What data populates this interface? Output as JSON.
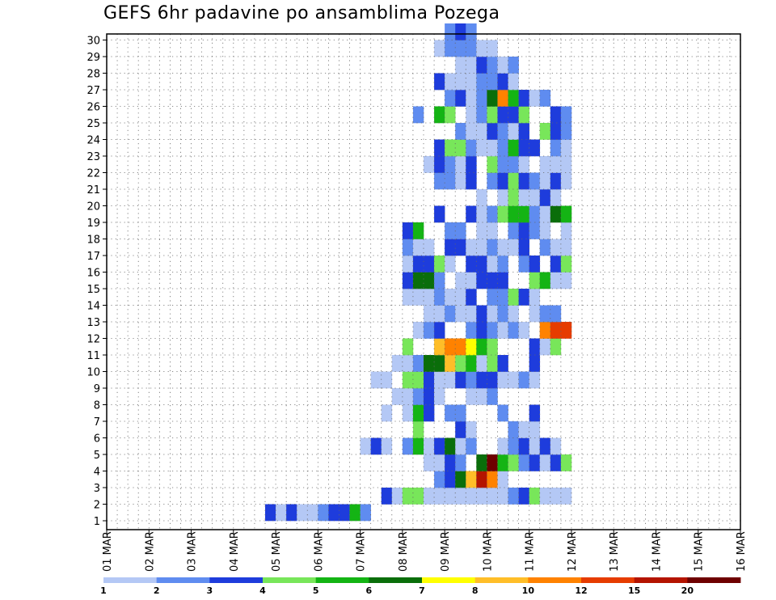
{
  "chart_data": {
    "type": "heatmap",
    "title": "GEFS 6hr padavine po ansamblima Pozega",
    "x_tick_labels": [
      "01 MAR",
      "02 MAR",
      "03 MAR",
      "04 MAR",
      "05 MAR",
      "06 MAR",
      "07 MAR",
      "08 MAR",
      "09 MAR",
      "10 MAR",
      "11 MAR",
      "12 MAR",
      "13 MAR",
      "14 MAR",
      "15 MAR",
      "16 MAR"
    ],
    "y_tick_labels": [
      "1",
      "2",
      "3",
      "4",
      "5",
      "6",
      "7",
      "8",
      "9",
      "10",
      "11",
      "12",
      "13",
      "14",
      "15",
      "16",
      "17",
      "18",
      "19",
      "20",
      "21",
      "22",
      "23",
      "24",
      "25",
      "26",
      "27",
      "28",
      "29",
      "30"
    ],
    "grid": true,
    "legend": {
      "placement": "bottom",
      "labels": [
        "1",
        "2",
        "3",
        "4",
        "5",
        "6",
        "7",
        "8",
        "10",
        "12",
        "15",
        "20"
      ],
      "colors": [
        "#b4c8f5",
        "#5f8cf0",
        "#1e3cdc",
        "#78e65a",
        "#14b414",
        "#0a6e0a",
        "#ffff00",
        "#ffbe28",
        "#ff8200",
        "#e63c00",
        "#b41400",
        "#6e0000"
      ]
    },
    "cells": [
      [
        15,
        0,
        3
      ],
      [
        16,
        0,
        1
      ],
      [
        17,
        0,
        3
      ],
      [
        18,
        0,
        1
      ],
      [
        19,
        0,
        1
      ],
      [
        20,
        0,
        2
      ],
      [
        21,
        0,
        3
      ],
      [
        22,
        0,
        3
      ],
      [
        23,
        0,
        5
      ],
      [
        24,
        0,
        2
      ],
      [
        26,
        1,
        3
      ],
      [
        27,
        1,
        1
      ],
      [
        28,
        1,
        4
      ],
      [
        29,
        1,
        4
      ],
      [
        30,
        1,
        1
      ],
      [
        31,
        1,
        1
      ],
      [
        32,
        1,
        1
      ],
      [
        33,
        1,
        1
      ],
      [
        34,
        1,
        1
      ],
      [
        35,
        1,
        1
      ],
      [
        36,
        1,
        1
      ],
      [
        37,
        1,
        1
      ],
      [
        38,
        1,
        2
      ],
      [
        39,
        1,
        3
      ],
      [
        40,
        1,
        4
      ],
      [
        41,
        1,
        1
      ],
      [
        42,
        1,
        1
      ],
      [
        43,
        1,
        1
      ],
      [
        31,
        2,
        2
      ],
      [
        32,
        2,
        3
      ],
      [
        33,
        2,
        6
      ],
      [
        34,
        2,
        8
      ],
      [
        35,
        2,
        11
      ],
      [
        36,
        2,
        9
      ],
      [
        37,
        2,
        1
      ],
      [
        30,
        3,
        1
      ],
      [
        31,
        3,
        1
      ],
      [
        32,
        3,
        3
      ],
      [
        33,
        3,
        2
      ],
      [
        35,
        3,
        6
      ],
      [
        36,
        3,
        12
      ],
      [
        37,
        3,
        5
      ],
      [
        38,
        3,
        4
      ],
      [
        39,
        3,
        2
      ],
      [
        40,
        3,
        3
      ],
      [
        41,
        3,
        1
      ],
      [
        42,
        3,
        3
      ],
      [
        43,
        3,
        4
      ],
      [
        24,
        4,
        1
      ],
      [
        25,
        4,
        3
      ],
      [
        26,
        4,
        1
      ],
      [
        28,
        4,
        2
      ],
      [
        29,
        4,
        5
      ],
      [
        30,
        4,
        1
      ],
      [
        31,
        4,
        3
      ],
      [
        32,
        4,
        6
      ],
      [
        33,
        4,
        1
      ],
      [
        34,
        4,
        2
      ],
      [
        37,
        4,
        1
      ],
      [
        38,
        4,
        2
      ],
      [
        39,
        4,
        3
      ],
      [
        40,
        4,
        1
      ],
      [
        41,
        4,
        3
      ],
      [
        42,
        4,
        1
      ],
      [
        29,
        5,
        4
      ],
      [
        33,
        5,
        3
      ],
      [
        34,
        5,
        1
      ],
      [
        38,
        5,
        2
      ],
      [
        39,
        5,
        1
      ],
      [
        40,
        5,
        1
      ],
      [
        26,
        6,
        1
      ],
      [
        28,
        6,
        1
      ],
      [
        29,
        6,
        5
      ],
      [
        30,
        6,
        3
      ],
      [
        32,
        6,
        2
      ],
      [
        33,
        6,
        2
      ],
      [
        37,
        6,
        2
      ],
      [
        40,
        6,
        3
      ],
      [
        27,
        7,
        1
      ],
      [
        28,
        7,
        1
      ],
      [
        29,
        7,
        2
      ],
      [
        30,
        7,
        3
      ],
      [
        31,
        7,
        1
      ],
      [
        34,
        7,
        1
      ],
      [
        35,
        7,
        1
      ],
      [
        36,
        7,
        2
      ],
      [
        25,
        8,
        1
      ],
      [
        26,
        8,
        1
      ],
      [
        28,
        8,
        4
      ],
      [
        29,
        8,
        4
      ],
      [
        30,
        8,
        3
      ],
      [
        31,
        8,
        1
      ],
      [
        32,
        8,
        1
      ],
      [
        33,
        8,
        3
      ],
      [
        34,
        8,
        2
      ],
      [
        35,
        8,
        3
      ],
      [
        36,
        8,
        3
      ],
      [
        37,
        8,
        1
      ],
      [
        38,
        8,
        1
      ],
      [
        39,
        8,
        2
      ],
      [
        40,
        8,
        1
      ],
      [
        27,
        9,
        1
      ],
      [
        28,
        9,
        1
      ],
      [
        29,
        9,
        2
      ],
      [
        30,
        9,
        6
      ],
      [
        31,
        9,
        6
      ],
      [
        32,
        9,
        8
      ],
      [
        33,
        9,
        4
      ],
      [
        34,
        9,
        5
      ],
      [
        35,
        9,
        1
      ],
      [
        36,
        9,
        4
      ],
      [
        37,
        9,
        3
      ],
      [
        40,
        9,
        3
      ],
      [
        28,
        10,
        4
      ],
      [
        31,
        10,
        8
      ],
      [
        32,
        10,
        9
      ],
      [
        33,
        10,
        9
      ],
      [
        34,
        10,
        7
      ],
      [
        35,
        10,
        5
      ],
      [
        36,
        10,
        4
      ],
      [
        40,
        10,
        3
      ],
      [
        41,
        10,
        1
      ],
      [
        42,
        10,
        4
      ],
      [
        29,
        11,
        1
      ],
      [
        30,
        11,
        2
      ],
      [
        31,
        11,
        3
      ],
      [
        34,
        11,
        2
      ],
      [
        35,
        11,
        3
      ],
      [
        36,
        11,
        2
      ],
      [
        37,
        11,
        1
      ],
      [
        38,
        11,
        2
      ],
      [
        39,
        11,
        1
      ],
      [
        41,
        11,
        9
      ],
      [
        42,
        11,
        10
      ],
      [
        43,
        11,
        10
      ],
      [
        30,
        12,
        1
      ],
      [
        31,
        12,
        1
      ],
      [
        32,
        12,
        2
      ],
      [
        33,
        12,
        1
      ],
      [
        34,
        12,
        1
      ],
      [
        35,
        12,
        3
      ],
      [
        36,
        12,
        1
      ],
      [
        37,
        12,
        2
      ],
      [
        38,
        12,
        1
      ],
      [
        40,
        12,
        1
      ],
      [
        41,
        12,
        2
      ],
      [
        42,
        12,
        2
      ],
      [
        28,
        13,
        1
      ],
      [
        29,
        13,
        1
      ],
      [
        30,
        13,
        1
      ],
      [
        31,
        13,
        2
      ],
      [
        32,
        13,
        1
      ],
      [
        33,
        13,
        1
      ],
      [
        34,
        13,
        3
      ],
      [
        36,
        13,
        2
      ],
      [
        37,
        13,
        2
      ],
      [
        38,
        13,
        4
      ],
      [
        39,
        13,
        3
      ],
      [
        40,
        13,
        1
      ],
      [
        28,
        14,
        3
      ],
      [
        29,
        14,
        6
      ],
      [
        30,
        14,
        6
      ],
      [
        31,
        14,
        2
      ],
      [
        33,
        14,
        1
      ],
      [
        34,
        14,
        1
      ],
      [
        35,
        14,
        3
      ],
      [
        36,
        14,
        3
      ],
      [
        37,
        14,
        3
      ],
      [
        40,
        14,
        4
      ],
      [
        41,
        14,
        5
      ],
      [
        42,
        14,
        1
      ],
      [
        43,
        14,
        1
      ],
      [
        28,
        15,
        1
      ],
      [
        29,
        15,
        3
      ],
      [
        30,
        15,
        3
      ],
      [
        31,
        15,
        4
      ],
      [
        32,
        15,
        1
      ],
      [
        34,
        15,
        3
      ],
      [
        35,
        15,
        3
      ],
      [
        36,
        15,
        1
      ],
      [
        37,
        15,
        2
      ],
      [
        39,
        15,
        2
      ],
      [
        40,
        15,
        3
      ],
      [
        42,
        15,
        3
      ],
      [
        43,
        15,
        4
      ],
      [
        28,
        16,
        2
      ],
      [
        29,
        16,
        1
      ],
      [
        30,
        16,
        1
      ],
      [
        32,
        16,
        3
      ],
      [
        33,
        16,
        3
      ],
      [
        34,
        16,
        1
      ],
      [
        35,
        16,
        1
      ],
      [
        36,
        16,
        2
      ],
      [
        37,
        16,
        1
      ],
      [
        38,
        16,
        1
      ],
      [
        39,
        16,
        3
      ],
      [
        41,
        16,
        2
      ],
      [
        42,
        16,
        1
      ],
      [
        43,
        16,
        1
      ],
      [
        28,
        17,
        3
      ],
      [
        29,
        17,
        5
      ],
      [
        32,
        17,
        2
      ],
      [
        33,
        17,
        2
      ],
      [
        35,
        17,
        1
      ],
      [
        36,
        17,
        1
      ],
      [
        38,
        17,
        2
      ],
      [
        39,
        17,
        3
      ],
      [
        40,
        17,
        2
      ],
      [
        41,
        17,
        1
      ],
      [
        43,
        17,
        1
      ],
      [
        31,
        18,
        3
      ],
      [
        34,
        18,
        3
      ],
      [
        35,
        18,
        1
      ],
      [
        36,
        18,
        2
      ],
      [
        37,
        18,
        4
      ],
      [
        38,
        18,
        5
      ],
      [
        39,
        18,
        5
      ],
      [
        40,
        18,
        2
      ],
      [
        41,
        18,
        1
      ],
      [
        42,
        18,
        6
      ],
      [
        43,
        18,
        5
      ],
      [
        35,
        19,
        1
      ],
      [
        37,
        19,
        1
      ],
      [
        38,
        19,
        4
      ],
      [
        39,
        19,
        1
      ],
      [
        40,
        19,
        1
      ],
      [
        41,
        19,
        3
      ],
      [
        42,
        19,
        1
      ],
      [
        31,
        20,
        2
      ],
      [
        32,
        20,
        2
      ],
      [
        33,
        20,
        1
      ],
      [
        34,
        20,
        3
      ],
      [
        36,
        20,
        2
      ],
      [
        37,
        20,
        3
      ],
      [
        38,
        20,
        4
      ],
      [
        39,
        20,
        3
      ],
      [
        40,
        20,
        2
      ],
      [
        41,
        20,
        1
      ],
      [
        42,
        20,
        3
      ],
      [
        43,
        20,
        1
      ],
      [
        30,
        21,
        1
      ],
      [
        31,
        21,
        3
      ],
      [
        32,
        21,
        2
      ],
      [
        33,
        21,
        1
      ],
      [
        34,
        21,
        3
      ],
      [
        36,
        21,
        4
      ],
      [
        37,
        21,
        2
      ],
      [
        38,
        21,
        2
      ],
      [
        39,
        21,
        1
      ],
      [
        41,
        21,
        1
      ],
      [
        42,
        21,
        1
      ],
      [
        43,
        21,
        1
      ],
      [
        31,
        22,
        3
      ],
      [
        32,
        22,
        4
      ],
      [
        33,
        22,
        4
      ],
      [
        34,
        22,
        2
      ],
      [
        35,
        22,
        1
      ],
      [
        36,
        22,
        1
      ],
      [
        37,
        22,
        2
      ],
      [
        38,
        22,
        5
      ],
      [
        39,
        22,
        3
      ],
      [
        40,
        22,
        3
      ],
      [
        42,
        22,
        2
      ],
      [
        43,
        22,
        1
      ],
      [
        33,
        23,
        2
      ],
      [
        34,
        23,
        1
      ],
      [
        35,
        23,
        1
      ],
      [
        36,
        23,
        3
      ],
      [
        37,
        23,
        2
      ],
      [
        38,
        23,
        1
      ],
      [
        39,
        23,
        3
      ],
      [
        41,
        23,
        4
      ],
      [
        42,
        23,
        3
      ],
      [
        43,
        23,
        2
      ],
      [
        29,
        24,
        2
      ],
      [
        31,
        24,
        5
      ],
      [
        32,
        24,
        4
      ],
      [
        34,
        24,
        1
      ],
      [
        35,
        24,
        2
      ],
      [
        36,
        24,
        4
      ],
      [
        37,
        24,
        3
      ],
      [
        38,
        24,
        3
      ],
      [
        39,
        24,
        4
      ],
      [
        42,
        24,
        3
      ],
      [
        43,
        24,
        2
      ],
      [
        32,
        25,
        2
      ],
      [
        33,
        25,
        3
      ],
      [
        34,
        25,
        1
      ],
      [
        35,
        25,
        2
      ],
      [
        36,
        25,
        6
      ],
      [
        37,
        25,
        9
      ],
      [
        38,
        25,
        5
      ],
      [
        39,
        25,
        3
      ],
      [
        40,
        25,
        1
      ],
      [
        41,
        25,
        2
      ],
      [
        31,
        26,
        3
      ],
      [
        32,
        26,
        1
      ],
      [
        33,
        26,
        1
      ],
      [
        34,
        26,
        1
      ],
      [
        35,
        26,
        2
      ],
      [
        36,
        26,
        2
      ],
      [
        37,
        26,
        3
      ],
      [
        38,
        26,
        1
      ],
      [
        33,
        27,
        1
      ],
      [
        34,
        27,
        1
      ],
      [
        35,
        27,
        3
      ],
      [
        36,
        27,
        2
      ],
      [
        37,
        27,
        1
      ],
      [
        38,
        27,
        2
      ],
      [
        31,
        28,
        1
      ],
      [
        32,
        28,
        2
      ],
      [
        33,
        28,
        2
      ],
      [
        34,
        28,
        2
      ],
      [
        35,
        28,
        1
      ],
      [
        36,
        28,
        1
      ],
      [
        32,
        29,
        2
      ],
      [
        33,
        29,
        3
      ],
      [
        34,
        29,
        2
      ]
    ]
  }
}
